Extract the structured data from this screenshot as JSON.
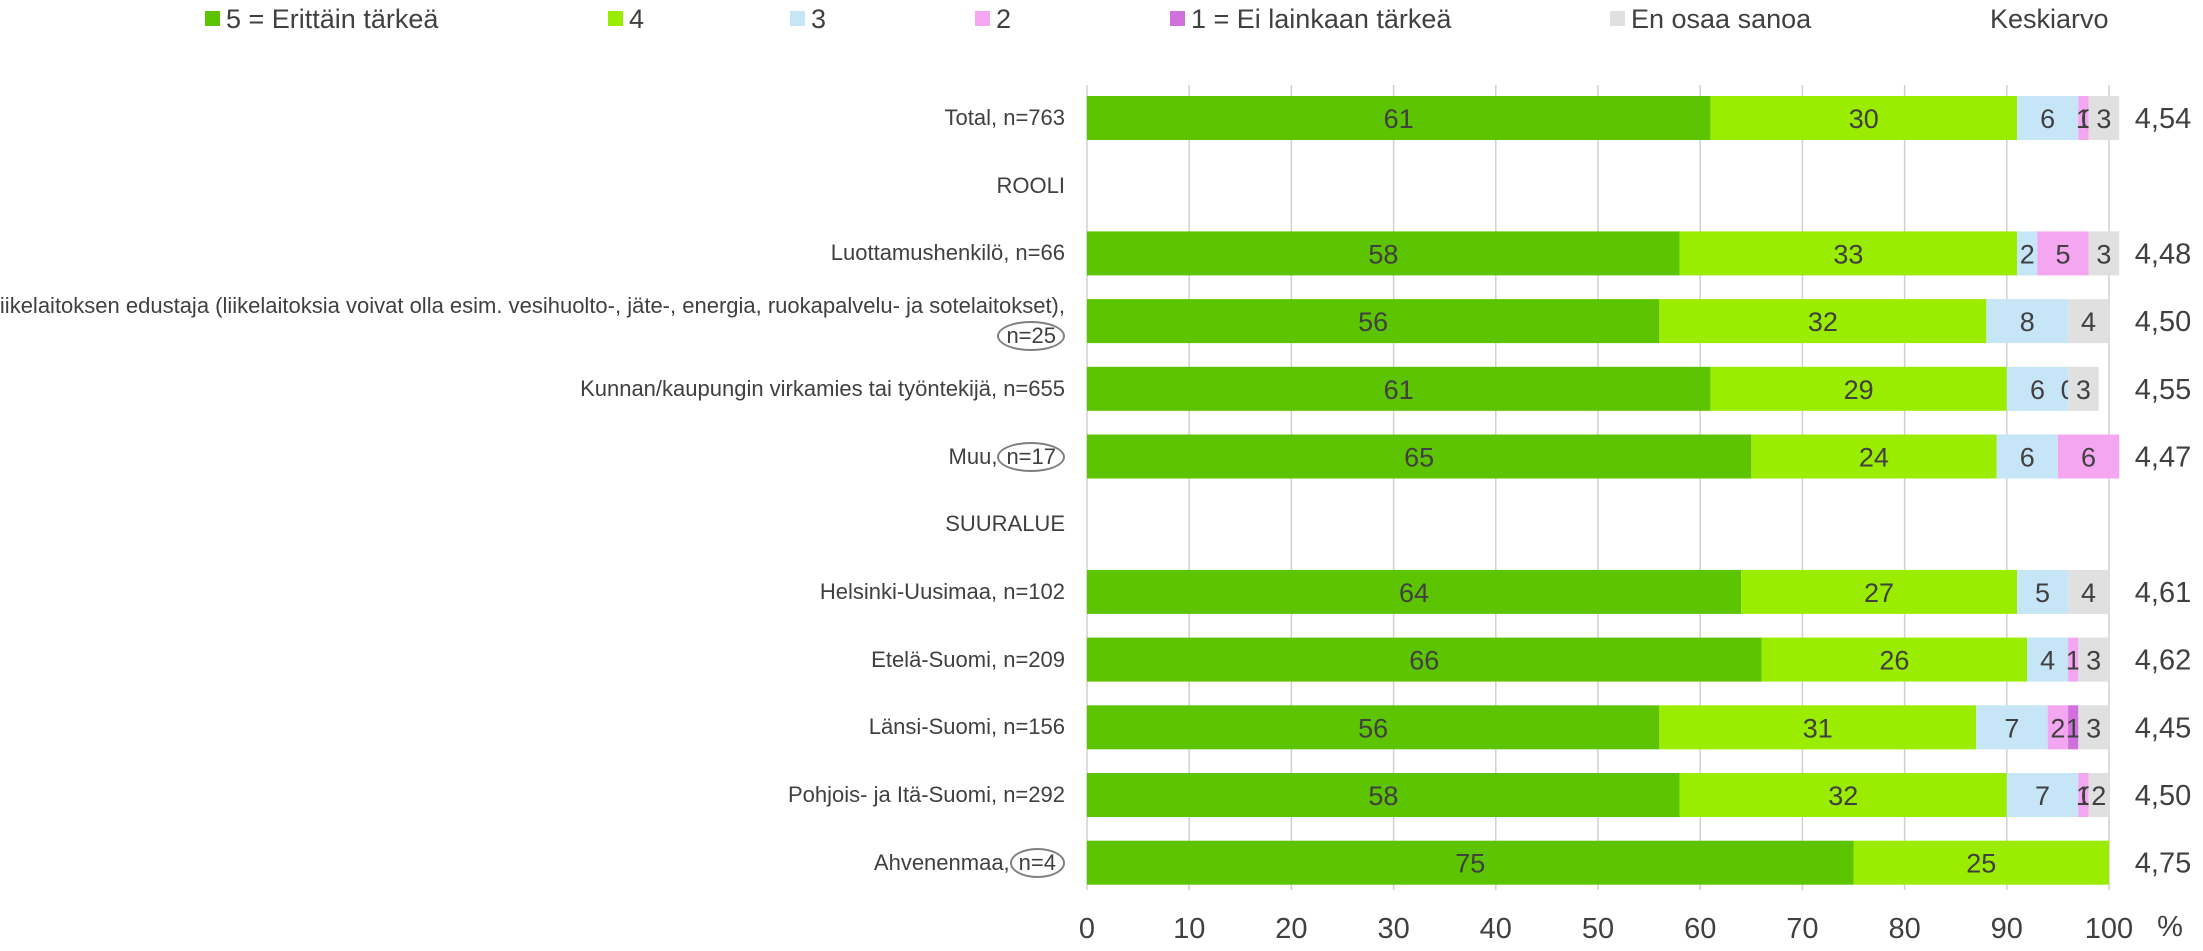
{
  "legend": {
    "items": [
      {
        "key": "v5",
        "label": "5 = Erittäin tärkeä",
        "color": "#5cc400"
      },
      {
        "key": "v4",
        "label": "4",
        "color": "#9aec00"
      },
      {
        "key": "v3",
        "label": "3",
        "color": "#c6e6f8"
      },
      {
        "key": "v2",
        "label": "2",
        "color": "#f4a6f0"
      },
      {
        "key": "v1",
        "label": "1 = Ei lainkaan tärkeä",
        "color": "#d070dc"
      },
      {
        "key": "eos",
        "label": "En osaa sanoa",
        "color": "#e0e0e0"
      }
    ],
    "avg_header": "Keskiarvo"
  },
  "chart_data": {
    "type": "bar",
    "orientation": "horizontal",
    "stacked": true,
    "xlabel": "%",
    "xlim": [
      0,
      100
    ],
    "xticks": [
      0,
      10,
      20,
      30,
      40,
      50,
      60,
      70,
      80,
      90,
      100
    ],
    "grid": true,
    "legend_position": "top",
    "series": [
      {
        "name": "5 = Erittäin tärkeä"
      },
      {
        "name": "4"
      },
      {
        "name": "3"
      },
      {
        "name": "2"
      },
      {
        "name": "1 = Ei lainkaan tärkeä"
      },
      {
        "name": "En osaa sanoa"
      }
    ],
    "rows": [
      {
        "label": "Total, n=763",
        "values": [
          61,
          30,
          6,
          1,
          0,
          3
        ],
        "value_labels": [
          "61",
          "30",
          "6",
          "1",
          "0",
          "3"
        ],
        "avg": "4,54"
      },
      {
        "label": "ROOLI",
        "header": true
      },
      {
        "label": "Luottamushenkilö, n=66",
        "values": [
          58,
          33,
          2,
          5,
          0,
          3
        ],
        "value_labels": [
          "58",
          "33",
          "2",
          "5",
          "",
          "3"
        ],
        "avg": "4,48"
      },
      {
        "label_text": "Liikelaitoksen edustaja (liikelaitoksia voivat olla esim. vesihuolto-, jäte-, energia, ruokapalvelu- ja sotelaitokset),",
        "label_n": "n=25",
        "ring": true,
        "values": [
          56,
          32,
          8,
          0,
          0,
          4
        ],
        "value_labels": [
          "56",
          "32",
          "8",
          "",
          "",
          "4"
        ],
        "avg": "4,50"
      },
      {
        "label": "Kunnan/kaupungin virkamies tai työntekijä, n=655",
        "values": [
          61,
          29,
          6,
          0,
          0,
          3
        ],
        "value_labels": [
          "61",
          "29",
          "6",
          "0",
          "",
          "3"
        ],
        "avg": "4,55"
      },
      {
        "label_text": "Muu,",
        "label_n": "n=17",
        "ring": true,
        "values": [
          65,
          24,
          6,
          6,
          0,
          0
        ],
        "value_labels": [
          "65",
          "24",
          "6",
          "6",
          "",
          ""
        ],
        "avg": "4,47"
      },
      {
        "label": "SUURALUE",
        "header": true
      },
      {
        "label": "Helsinki-Uusimaa, n=102",
        "values": [
          64,
          27,
          5,
          0,
          0,
          4
        ],
        "value_labels": [
          "64",
          "27",
          "5",
          "",
          "",
          "4"
        ],
        "avg": "4,61"
      },
      {
        "label": "Etelä-Suomi, n=209",
        "values": [
          66,
          26,
          4,
          1,
          0,
          3
        ],
        "value_labels": [
          "66",
          "26",
          "4",
          "1",
          "",
          "3"
        ],
        "avg": "4,62"
      },
      {
        "label": "Länsi-Suomi, n=156",
        "values": [
          56,
          31,
          7,
          2,
          1,
          3
        ],
        "value_labels": [
          "56",
          "31",
          "7",
          "2",
          "1",
          "3"
        ],
        "avg": "4,45"
      },
      {
        "label": "Pohjois- ja Itä-Suomi, n=292",
        "values": [
          58,
          32,
          7,
          1,
          0,
          2
        ],
        "value_labels": [
          "58",
          "32",
          "7",
          "1",
          "0",
          "2"
        ],
        "avg": "4,50"
      },
      {
        "label_text": "Ahvenenmaa,",
        "label_n": "n=4",
        "ring": true,
        "values": [
          75,
          25,
          0,
          0,
          0,
          0
        ],
        "value_labels": [
          "75",
          "25",
          "",
          "",
          "",
          ""
        ],
        "avg": "4,75"
      }
    ]
  }
}
